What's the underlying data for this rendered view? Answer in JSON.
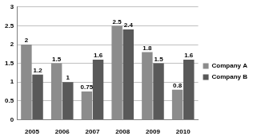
{
  "chart_data": {
    "type": "bar",
    "categories": [
      "2005",
      "2006",
      "2007",
      "2008",
      "2009",
      "2010"
    ],
    "series": [
      {
        "name": "Company A",
        "color": "#8c8c8c",
        "values": [
          2,
          1.5,
          0.75,
          2.5,
          1.8,
          0.8
        ]
      },
      {
        "name": "Company B",
        "color": "#595959",
        "values": [
          1.2,
          1,
          1.6,
          2.4,
          1.5,
          1.6
        ]
      }
    ],
    "ylim": [
      0,
      3
    ],
    "yticks": [
      0,
      0.5,
      1,
      1.5,
      2,
      2.5,
      3
    ],
    "grid": true,
    "legend": "right",
    "data_labels": true
  }
}
